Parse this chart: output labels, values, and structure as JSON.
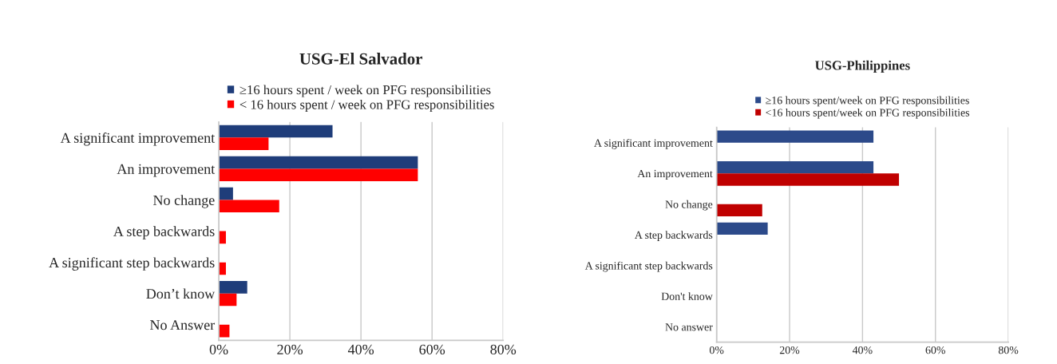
{
  "chart_data": [
    {
      "type": "bar",
      "orientation": "horizontal",
      "title": "USG-El Salvador",
      "categories": [
        "A significant improvement",
        "An improvement",
        "No change",
        "A step backwards",
        "A significant step backwards",
        "Don’t know",
        "No Answer"
      ],
      "series": [
        {
          "name": "≥16 hours spent / week on PFG responsibilities",
          "color": "#1f3d7a",
          "values": [
            32,
            56,
            4,
            null,
            null,
            8,
            null
          ]
        },
        {
          "name": "< 16 hours spent / week on PFG responsibilities",
          "color": "#ff0000",
          "values": [
            14,
            56,
            17,
            2,
            2,
            5,
            3
          ]
        }
      ],
      "xlim": [
        0,
        80
      ],
      "xticks": [
        {
          "value": 0,
          "label": "0%"
        },
        {
          "value": 20,
          "label": "20%"
        },
        {
          "value": 40,
          "label": "40%"
        },
        {
          "value": 60,
          "label": "60%"
        },
        {
          "value": 80,
          "label": "80%"
        }
      ],
      "grid": "x",
      "legend": "top"
    },
    {
      "type": "bar",
      "orientation": "horizontal",
      "title": "USG-Philippines",
      "categories": [
        "A significant improvement",
        "An improvement",
        "No change",
        "A step backwards",
        "A significant step backwards",
        "Don't know",
        "No answer"
      ],
      "series": [
        {
          "name": "≥16 hours spent/week on PFG responsibilities",
          "color": "#2c4a8a",
          "values": [
            43,
            43,
            null,
            14,
            null,
            null,
            null
          ]
        },
        {
          "name": "<16 hours spent/week on PFG responsibilities",
          "color": "#c00000",
          "values": [
            null,
            50,
            12.5,
            null,
            null,
            null,
            null
          ]
        }
      ],
      "xlim": [
        0,
        80
      ],
      "xticks": [
        {
          "value": 0,
          "label": "0%"
        },
        {
          "value": 20,
          "label": "20%"
        },
        {
          "value": 40,
          "label": "40%"
        },
        {
          "value": 60,
          "label": "60%"
        },
        {
          "value": 80,
          "label": "80%"
        }
      ],
      "grid": "x",
      "legend": "top"
    }
  ]
}
